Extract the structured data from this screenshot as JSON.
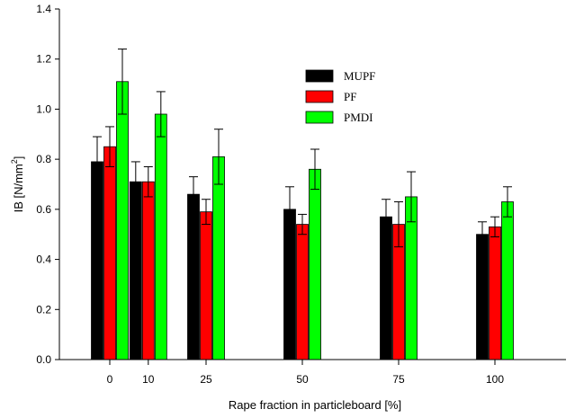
{
  "chart_data": {
    "type": "bar",
    "x_tick_labels": [
      "0",
      "10",
      "25",
      "50",
      "75",
      "100"
    ],
    "x": [
      0,
      10,
      25,
      50,
      75,
      100
    ],
    "series": [
      {
        "name": "MUPF",
        "color": "#000000",
        "values": [
          0.79,
          0.71,
          0.66,
          0.6,
          0.57,
          0.5
        ],
        "errors": [
          0.1,
          0.08,
          0.07,
          0.09,
          0.07,
          0.05
        ]
      },
      {
        "name": "PF",
        "color": "#ff0000",
        "values": [
          0.85,
          0.71,
          0.59,
          0.54,
          0.54,
          0.53
        ],
        "errors": [
          0.08,
          0.06,
          0.05,
          0.04,
          0.09,
          0.04
        ]
      },
      {
        "name": "PMDI",
        "color": "#00ff00",
        "values": [
          1.11,
          0.98,
          0.81,
          0.76,
          0.65,
          0.63
        ],
        "errors": [
          0.13,
          0.09,
          0.11,
          0.08,
          0.1,
          0.06
        ]
      }
    ],
    "xlabel": "Rape fraction in particleboard [%]",
    "ylabel_main": "IB [N/mm",
    "ylabel_sup": "2",
    "ylabel_end": "]",
    "ylim": [
      0,
      1.4
    ],
    "y_ticks": [
      "0.0",
      "0.2",
      "0.4",
      "0.6",
      "0.8",
      "1.0",
      "1.2",
      "1.4"
    ],
    "legend_position": "top-right",
    "grid": false
  }
}
